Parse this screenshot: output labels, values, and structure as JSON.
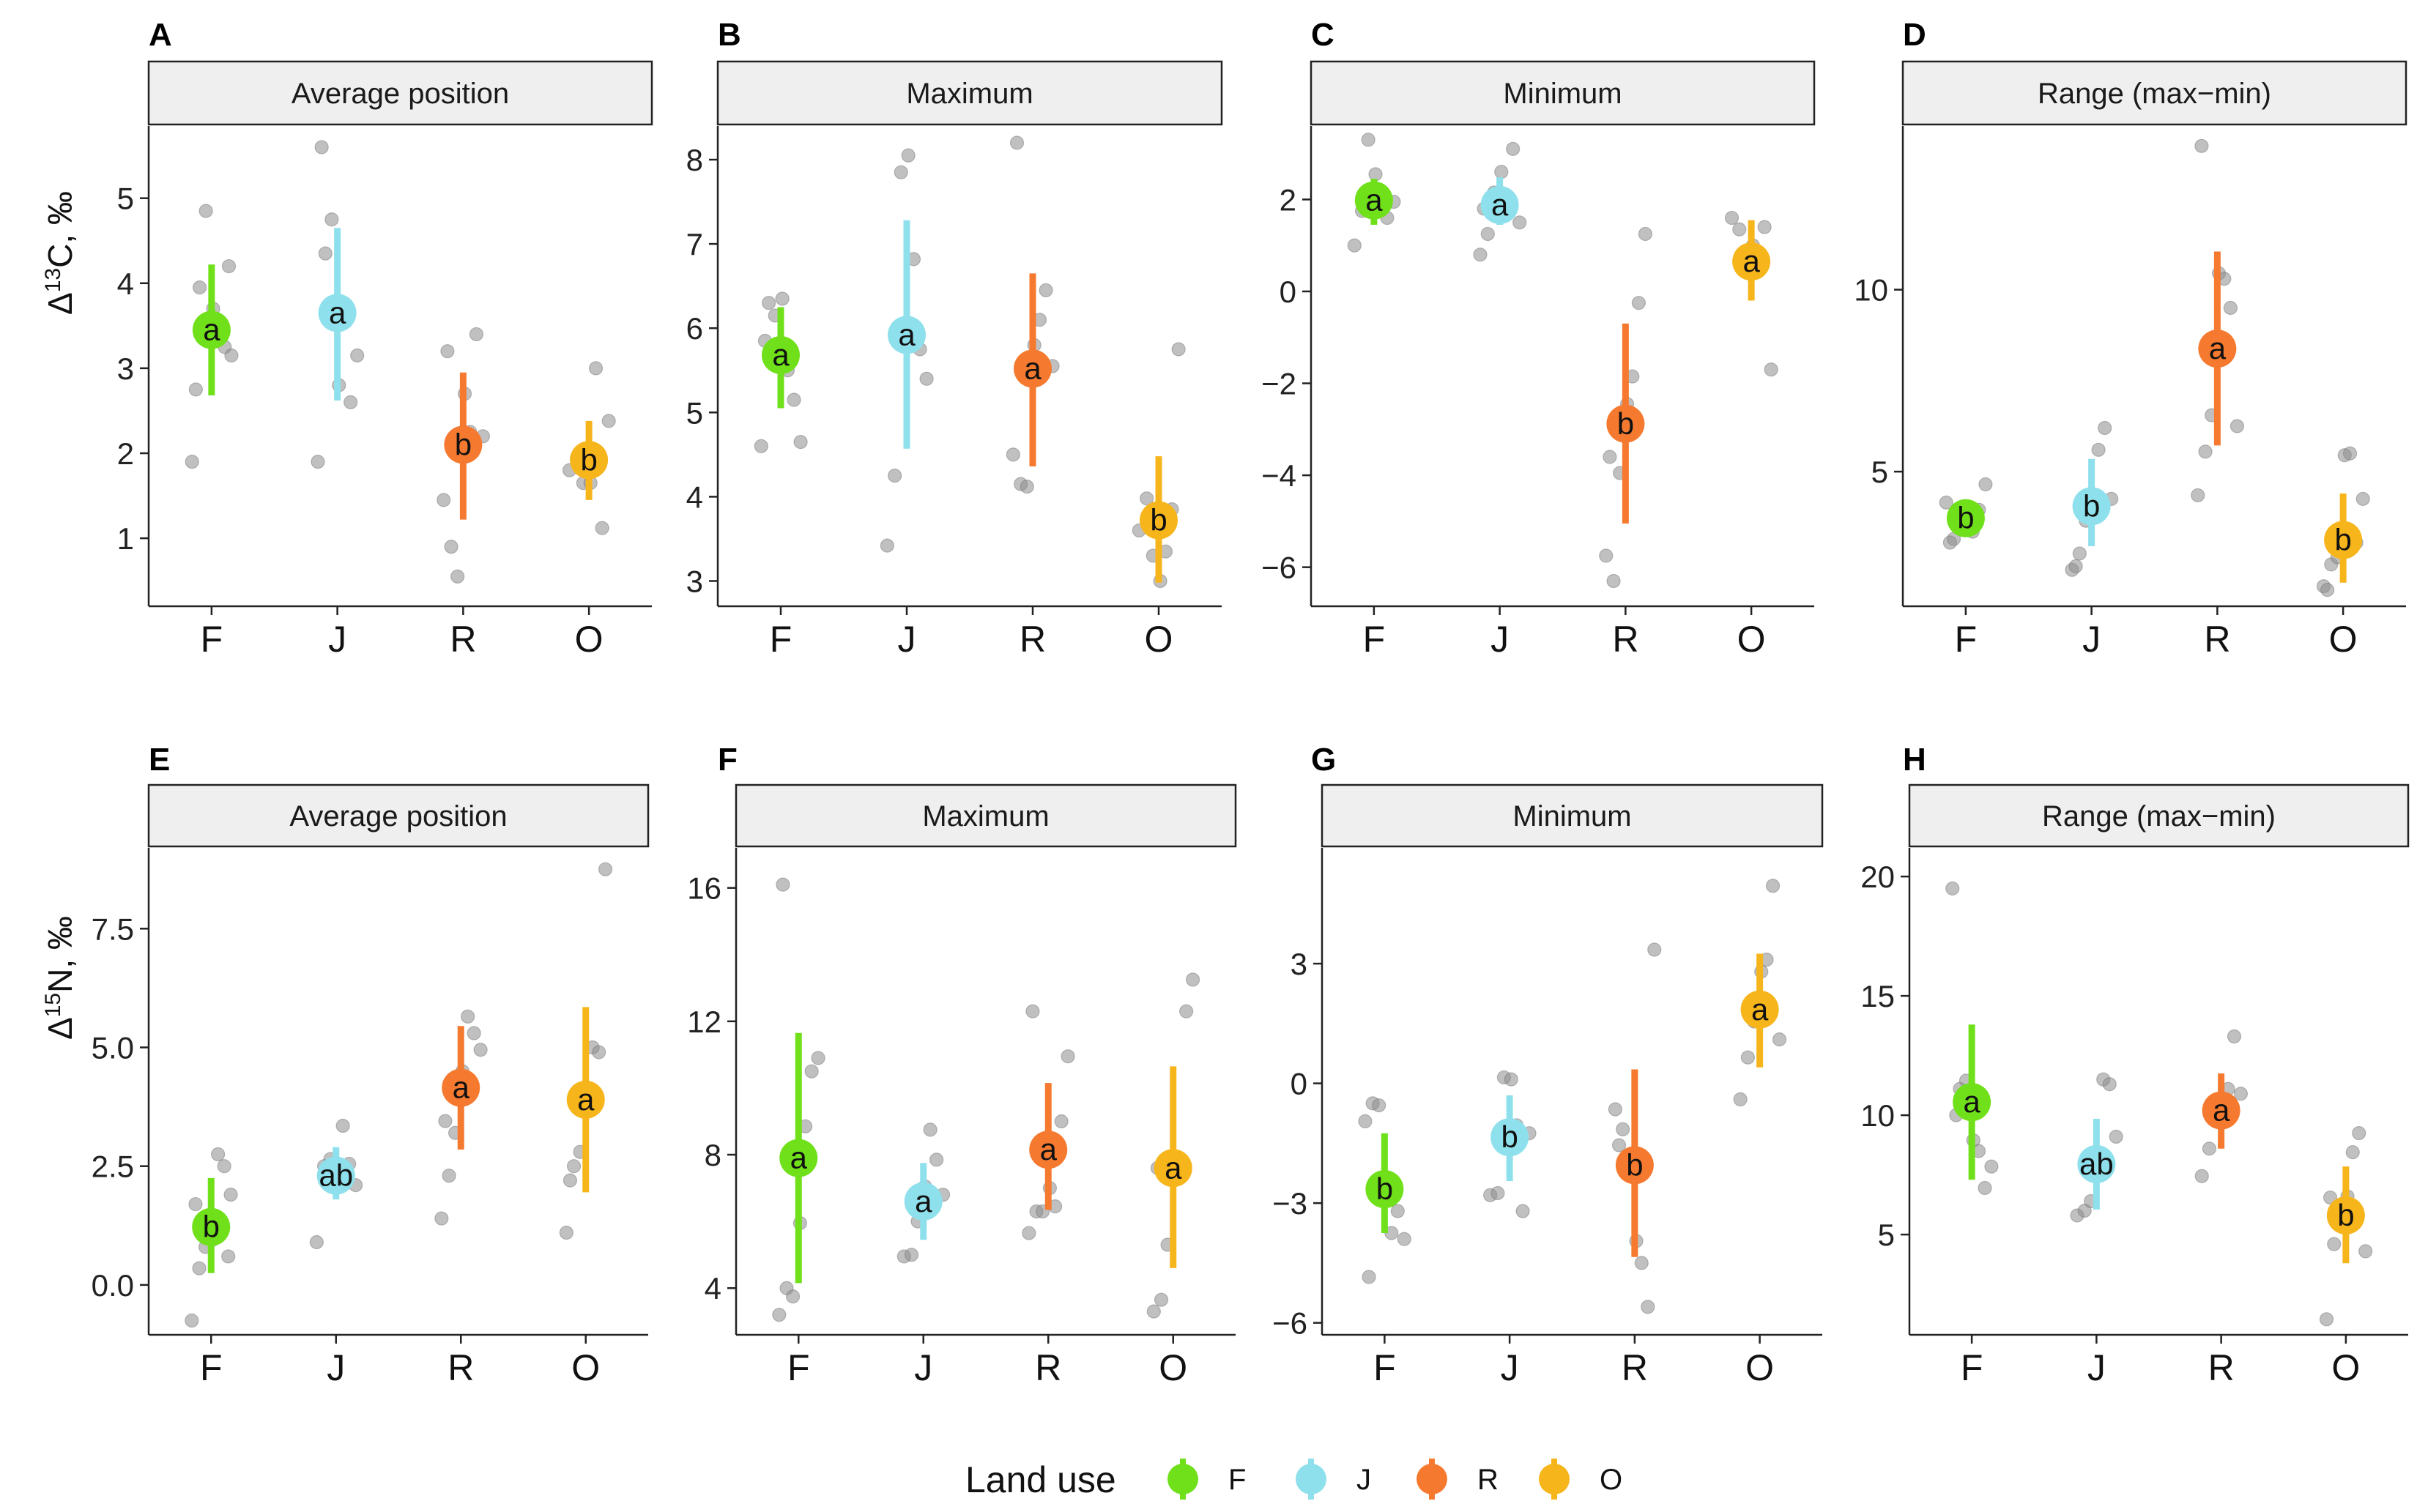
{
  "colors": {
    "F": "#6fe01a",
    "J": "#8ee0ec",
    "R": "#f57a30",
    "O": "#f7b51c",
    "raw_points": "#8c8c8c",
    "strip_fill": "#efefef"
  },
  "y_axis_titles": {
    "carbon": [
      "Δ",
      "13",
      "C,  ‰"
    ],
    "nitrogen": [
      "Δ",
      "15",
      "N,  ‰"
    ]
  },
  "legend": {
    "title": "Land use",
    "items": [
      "F",
      "J",
      "R",
      "O"
    ]
  },
  "chart_data": [
    {
      "type": "scatter",
      "panel_label": "A",
      "title": "Average position",
      "row": "carbon",
      "categories": [
        "F",
        "J",
        "R",
        "O"
      ],
      "ylim": [
        0.2,
        5.85
      ],
      "yticks": [
        1,
        2,
        3,
        4,
        5
      ],
      "ytick_labels": [
        "1",
        "2",
        "3",
        "4",
        "5"
      ],
      "summary": [
        {
          "mean": 3.45,
          "low": 2.68,
          "high": 4.22,
          "letter": "a"
        },
        {
          "mean": 3.65,
          "low": 2.62,
          "high": 4.65,
          "letter": "a"
        },
        {
          "mean": 2.1,
          "low": 1.22,
          "high": 2.95,
          "letter": "b"
        },
        {
          "mean": 1.92,
          "low": 1.45,
          "high": 2.38,
          "letter": "b"
        }
      ],
      "raw": [
        [
          1.9,
          3.95,
          4.85,
          3.7,
          3.5,
          3.25,
          3.15,
          2.75,
          4.2
        ],
        [
          1.9,
          4.35,
          4.75,
          2.8,
          3.75,
          2.6,
          3.15,
          5.6
        ],
        [
          1.45,
          0.9,
          0.55,
          2.7,
          2.25,
          3.4,
          2.2,
          3.2
        ],
        [
          1.8,
          1.95,
          1.65,
          1.65,
          3.0,
          1.12,
          2.38
        ]
      ]
    },
    {
      "type": "scatter",
      "panel_label": "B",
      "title": "Maximum",
      "row": "carbon",
      "categories": [
        "F",
        "J",
        "R",
        "O"
      ],
      "ylim": [
        2.7,
        8.4
      ],
      "yticks": [
        3,
        4,
        5,
        6,
        7,
        8
      ],
      "ytick_labels": [
        "3",
        "4",
        "5",
        "6",
        "7",
        "8"
      ],
      "summary": [
        {
          "mean": 5.68,
          "low": 5.05,
          "high": 6.25,
          "letter": "a"
        },
        {
          "mean": 5.92,
          "low": 4.57,
          "high": 7.28,
          "letter": "a"
        },
        {
          "mean": 5.52,
          "low": 4.36,
          "high": 6.65,
          "letter": "a"
        },
        {
          "mean": 3.72,
          "low": 2.98,
          "high": 4.48,
          "letter": "b"
        }
      ],
      "raw": [
        [
          4.6,
          6.3,
          6.15,
          6.35,
          5.5,
          5.15,
          4.65,
          5.85
        ],
        [
          3.42,
          4.25,
          7.85,
          8.05,
          6.82,
          5.75,
          5.4
        ],
        [
          4.5,
          4.15,
          4.12,
          5.8,
          6.1,
          6.45,
          5.55,
          8.2
        ],
        [
          3.6,
          3.98,
          3.3,
          3.0,
          3.35,
          3.85,
          5.75
        ]
      ]
    },
    {
      "type": "scatter",
      "panel_label": "C",
      "title": "Minimum",
      "row": "carbon",
      "categories": [
        "F",
        "J",
        "R",
        "O"
      ],
      "ylim": [
        -6.85,
        3.6
      ],
      "yticks": [
        -6,
        -4,
        -2,
        0,
        2
      ],
      "ytick_labels": [
        "−6",
        "−4",
        "−2",
        "0",
        "2"
      ],
      "summary": [
        {
          "mean": 1.98,
          "low": 1.45,
          "high": 2.45,
          "letter": "a"
        },
        {
          "mean": 1.88,
          "low": 1.45,
          "high": 2.48,
          "letter": "a"
        },
        {
          "mean": -2.88,
          "low": -5.05,
          "high": -0.7,
          "letter": "b"
        },
        {
          "mean": 0.65,
          "low": -0.2,
          "high": 1.55,
          "letter": "a"
        }
      ],
      "raw": [
        [
          1.0,
          1.75,
          3.3,
          2.55,
          2.15,
          1.6,
          1.95
        ],
        [
          0.8,
          1.25,
          2.15,
          2.6,
          2.0,
          3.1,
          1.5,
          1.8
        ],
        [
          -5.75,
          -6.3,
          -3.95,
          -2.45,
          -1.85,
          -0.25,
          1.25,
          -3.6
        ],
        [
          1.6,
          1.35,
          0.5,
          1.0,
          0.45,
          1.4,
          -1.7
        ]
      ]
    },
    {
      "type": "scatter",
      "panel_label": "D",
      "title": "Range (max−min)",
      "row": "carbon",
      "categories": [
        "F",
        "J",
        "R",
        "O"
      ],
      "ylim": [
        1.3,
        14.5
      ],
      "yticks": [
        5,
        10
      ],
      "ytick_labels": [
        "5",
        "10"
      ],
      "summary": [
        {
          "mean": 3.72,
          "low": 3.3,
          "high": 4.15,
          "letter": "b"
        },
        {
          "mean": 4.05,
          "low": 2.95,
          "high": 5.35,
          "letter": "b"
        },
        {
          "mean": 8.38,
          "low": 5.72,
          "high": 11.05,
          "letter": "a"
        },
        {
          "mean": 3.12,
          "low": 1.95,
          "high": 4.4,
          "letter": "b"
        }
      ],
      "raw": [
        [
          4.15,
          3.15,
          3.45,
          3.85,
          3.35,
          3.95,
          4.65,
          3.05
        ],
        [
          2.3,
          2.75,
          3.65,
          4.0,
          5.6,
          6.2,
          4.25,
          2.4
        ],
        [
          4.35,
          5.55,
          6.55,
          10.45,
          10.3,
          9.5,
          6.25,
          13.95
        ],
        [
          1.85,
          2.45,
          2.65,
          5.45,
          5.5,
          3.05,
          4.25,
          1.75
        ]
      ]
    },
    {
      "type": "scatter",
      "panel_label": "E",
      "title": "Average position",
      "row": "nitrogen",
      "categories": [
        "F",
        "J",
        "R",
        "O"
      ],
      "ylim": [
        -1.05,
        9.2
      ],
      "yticks": [
        0,
        2.5,
        5,
        7.5
      ],
      "ytick_labels": [
        "0.0",
        "2.5",
        "5.0",
        "7.5"
      ],
      "summary": [
        {
          "mean": 1.22,
          "low": 0.25,
          "high": 2.25,
          "letter": "b"
        },
        {
          "mean": 2.3,
          "low": 1.8,
          "high": 2.9,
          "letter": "ab"
        },
        {
          "mean": 4.15,
          "low": 2.85,
          "high": 5.45,
          "letter": "a"
        },
        {
          "mean": 3.9,
          "low": 1.95,
          "high": 5.85,
          "letter": "a"
        }
      ],
      "raw": [
        [
          -0.75,
          0.35,
          0.8,
          0.95,
          2.75,
          2.5,
          1.9,
          1.7,
          0.6
        ],
        [
          0.9,
          2.5,
          2.65,
          2.45,
          3.35,
          2.55,
          2.1
        ],
        [
          1.4,
          2.3,
          3.2,
          4.5,
          5.65,
          5.3,
          4.95,
          3.45
        ],
        [
          1.1,
          2.5,
          2.8,
          3.75,
          5.0,
          4.9,
          8.75,
          2.2
        ]
      ]
    },
    {
      "type": "scatter",
      "panel_label": "F",
      "title": "Maximum",
      "row": "nitrogen",
      "categories": [
        "F",
        "J",
        "R",
        "O"
      ],
      "ylim": [
        2.6,
        17.2
      ],
      "yticks": [
        4,
        8,
        12,
        16
      ],
      "ytick_labels": [
        "4",
        "8",
        "12",
        "16"
      ],
      "summary": [
        {
          "mean": 7.9,
          "low": 4.15,
          "high": 11.65,
          "letter": "a"
        },
        {
          "mean": 6.6,
          "low": 5.45,
          "high": 7.75,
          "letter": "a"
        },
        {
          "mean": 8.15,
          "low": 6.35,
          "high": 10.15,
          "letter": "a"
        },
        {
          "mean": 7.6,
          "low": 4.6,
          "high": 10.65,
          "letter": "a"
        }
      ],
      "raw": [
        [
          3.2,
          4.0,
          3.75,
          5.95,
          8.85,
          10.5,
          10.9,
          16.1
        ],
        [
          4.95,
          5.0,
          6.0,
          7.05,
          8.75,
          7.85,
          6.8
        ],
        [
          5.65,
          6.3,
          6.3,
          7.0,
          6.45,
          9.0,
          10.95,
          12.3
        ],
        [
          3.3,
          3.65,
          5.3,
          7.75,
          7.85,
          12.3,
          13.25,
          7.6
        ]
      ]
    },
    {
      "type": "scatter",
      "panel_label": "G",
      "title": "Minimum",
      "row": "nitrogen",
      "categories": [
        "F",
        "J",
        "R",
        "O"
      ],
      "ylim": [
        -6.3,
        5.9
      ],
      "yticks": [
        -6,
        -3,
        0,
        3
      ],
      "ytick_labels": [
        "−6",
        "−3",
        "0",
        "3"
      ],
      "summary": [
        {
          "mean": -2.65,
          "low": -3.75,
          "high": -1.25,
          "letter": "b"
        },
        {
          "mean": -1.35,
          "low": -2.45,
          "high": -0.3,
          "letter": "b"
        },
        {
          "mean": -2.05,
          "low": -4.35,
          "high": 0.35,
          "letter": "b"
        },
        {
          "mean": 1.85,
          "low": 0.4,
          "high": 3.25,
          "letter": "a"
        }
      ],
      "raw": [
        [
          -0.95,
          -0.5,
          -0.55,
          -2.85,
          -3.75,
          -3.2,
          -3.9,
          -4.85
        ],
        [
          -2.8,
          -2.75,
          0.15,
          0.1,
          -1.05,
          -3.2,
          -1.25
        ],
        [
          -0.65,
          -1.15,
          -2.0,
          -3.95,
          -4.5,
          -5.6,
          3.35,
          -1.55
        ],
        [
          -0.4,
          0.65,
          1.55,
          2.8,
          3.1,
          4.95,
          1.1
        ]
      ]
    },
    {
      "type": "scatter",
      "panel_label": "H",
      "title": "Range (max−min)",
      "row": "nitrogen",
      "categories": [
        "F",
        "J",
        "R",
        "O"
      ],
      "ylim": [
        0.8,
        21.2
      ],
      "yticks": [
        5,
        10,
        15,
        20
      ],
      "ytick_labels": [
        "5",
        "10",
        "15",
        "20"
      ],
      "summary": [
        {
          "mean": 10.55,
          "low": 7.3,
          "high": 13.8,
          "letter": "a"
        },
        {
          "mean": 7.95,
          "low": 6.05,
          "high": 9.85,
          "letter": "ab"
        },
        {
          "mean": 10.2,
          "low": 8.6,
          "high": 11.75,
          "letter": "a"
        },
        {
          "mean": 5.8,
          "low": 3.8,
          "high": 7.85,
          "letter": "b"
        }
      ],
      "raw": [
        [
          19.5,
          11.1,
          11.45,
          8.95,
          8.5,
          6.95,
          7.85,
          10.0
        ],
        [
          5.8,
          6.0,
          6.4,
          8.1,
          11.5,
          11.3,
          9.1
        ],
        [
          7.45,
          8.6,
          9.75,
          10.6,
          11.1,
          13.3,
          10.9
        ],
        [
          1.45,
          4.6,
          5.6,
          6.6,
          8.45,
          9.25,
          4.3,
          6.55
        ]
      ]
    }
  ]
}
